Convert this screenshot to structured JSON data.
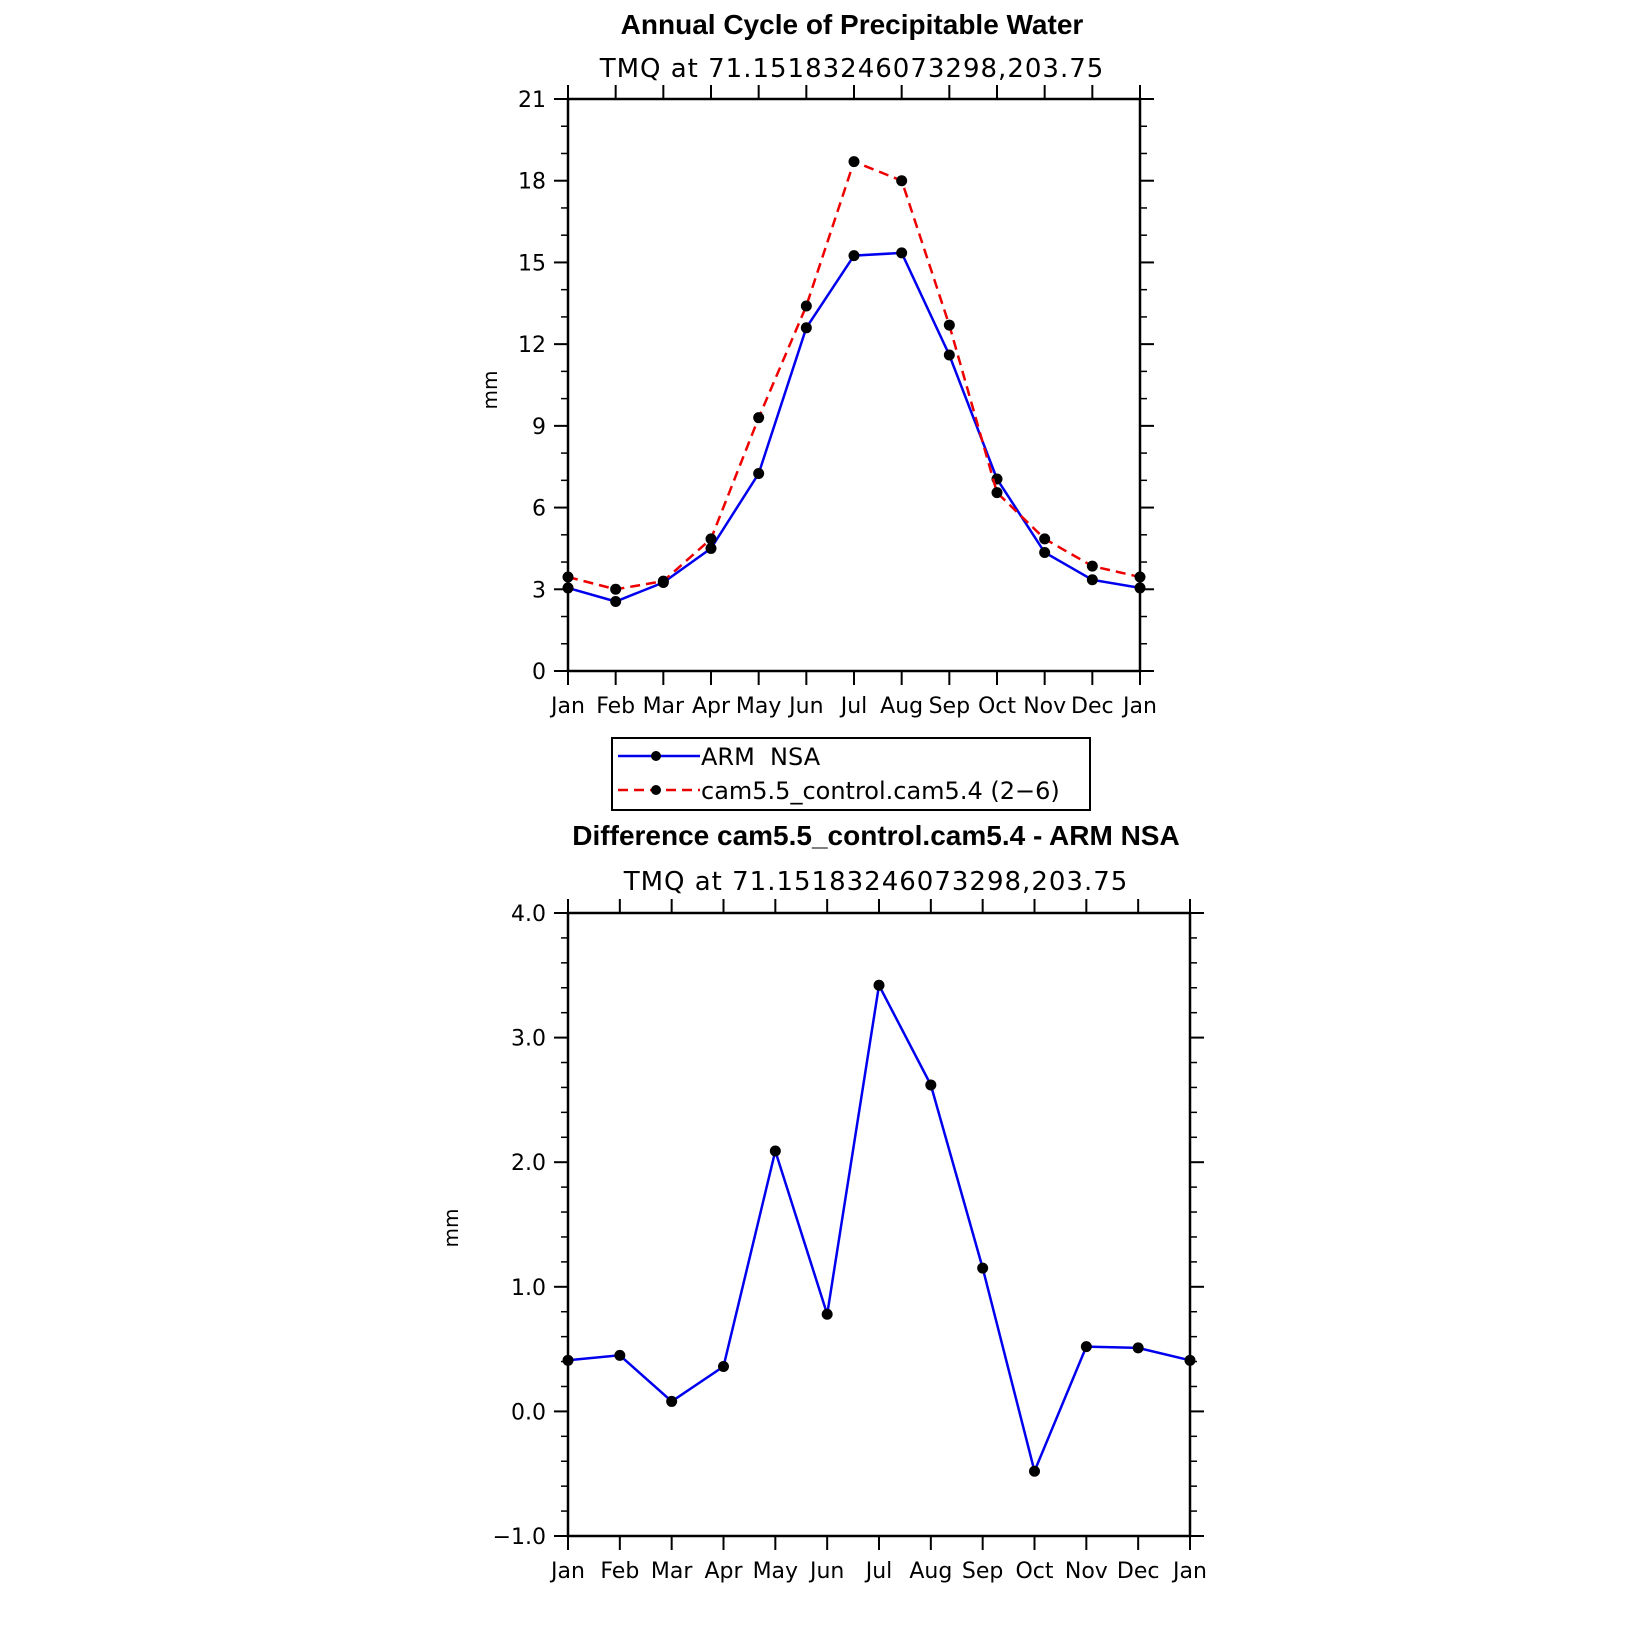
{
  "chart_data": [
    {
      "type": "line",
      "title": "Annual Cycle of Precipitable Water",
      "subtitle": "TMQ  at  71.15183246073298,203.75",
      "xlabel": "",
      "ylabel": "mm",
      "categories": [
        "Jan",
        "Feb",
        "Mar",
        "Apr",
        "May",
        "Jun",
        "Jul",
        "Aug",
        "Sep",
        "Oct",
        "Nov",
        "Dec",
        "Jan"
      ],
      "ylim": [
        0,
        21
      ],
      "yticks": [
        "0",
        "3",
        "6",
        "9",
        "12",
        "15",
        "18",
        "21"
      ],
      "series": [
        {
          "name": "ARM  NSA",
          "color": "#0000ee",
          "dash": "solid",
          "values": [
            3.05,
            2.55,
            3.25,
            4.5,
            7.25,
            12.6,
            15.25,
            15.35,
            11.6,
            7.05,
            4.35,
            3.35,
            3.05
          ]
        },
        {
          "name": "cam5.5_control.cam5.4 (2−6)",
          "color": "#ee0000",
          "dash": "dashed",
          "values": [
            3.45,
            3.0,
            3.3,
            4.85,
            9.3,
            13.4,
            18.7,
            18.0,
            12.7,
            6.55,
            4.85,
            3.85,
            3.45
          ]
        }
      ],
      "legend_position": "below"
    },
    {
      "type": "line",
      "title": "Difference cam5.5_control.cam5.4 - ARM NSA",
      "subtitle": "TMQ  at  71.15183246073298,203.75",
      "xlabel": "",
      "ylabel": "mm",
      "categories": [
        "Jan",
        "Feb",
        "Mar",
        "Apr",
        "May",
        "Jun",
        "Jul",
        "Aug",
        "Sep",
        "Oct",
        "Nov",
        "Dec",
        "Jan"
      ],
      "ylim": [
        -1.0,
        4.0
      ],
      "yticks": [
        "−1.0",
        "0.0",
        "1.0",
        "2.0",
        "3.0",
        "4.0"
      ],
      "series": [
        {
          "color": "#0000ee",
          "dash": "solid",
          "values": [
            0.41,
            0.45,
            0.08,
            0.36,
            2.09,
            0.78,
            3.42,
            2.62,
            1.15,
            -0.48,
            0.52,
            0.51,
            0.41
          ]
        }
      ]
    }
  ]
}
